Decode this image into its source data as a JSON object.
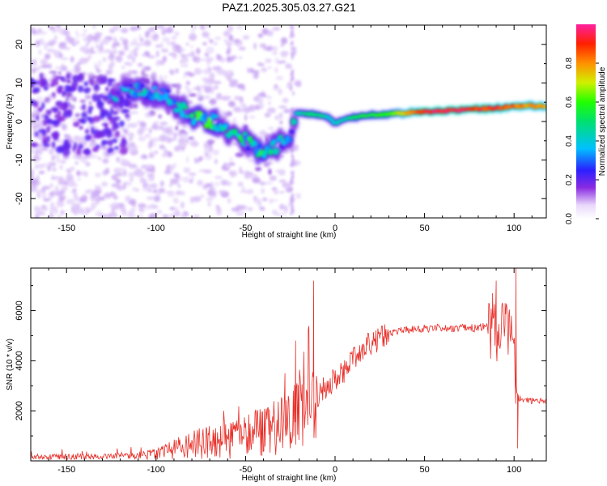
{
  "figure": {
    "title": "PAZ1.2025.305.03.27.G21"
  },
  "chart_data": [
    {
      "type": "heatmap",
      "title": "PAZ1.2025.305.03.27.G21",
      "xlabel": "Height of straight line (km)",
      "ylabel": "Frequency (Hz)",
      "xlim": [
        -170,
        118
      ],
      "ylim": [
        -25,
        25
      ],
      "x_ticks": [
        -150,
        -100,
        -50,
        0,
        50,
        100
      ],
      "x_tick_labels": [
        "-150",
        "-100",
        "-50",
        "0",
        "50",
        "100"
      ],
      "y_ticks": [
        -20,
        -10,
        0,
        10,
        20
      ],
      "y_tick_labels": [
        "-20",
        "-10",
        "0",
        "10",
        "20"
      ],
      "colorbar": {
        "label": "Normalized spectral amplitude",
        "range": [
          0,
          1
        ],
        "ticks": [
          0.0,
          0.2,
          0.4,
          0.6,
          0.8
        ],
        "tick_labels": [
          "0.0",
          "0.2",
          "0.4",
          "0.6",
          "0.8"
        ]
      },
      "ridge": {
        "x": [
          -125,
          -115,
          -105,
          -95,
          -88,
          -80,
          -70,
          -60,
          -50,
          -40,
          -32,
          -25,
          -22,
          -15,
          -8,
          -3,
          0,
          5,
          15,
          30,
          50,
          70,
          90,
          100,
          118
        ],
        "frequency": [
          7,
          8,
          8,
          7,
          4,
          1,
          0.5,
          -2,
          -5,
          -8,
          -6,
          -3,
          2,
          2,
          1.5,
          1,
          -0.5,
          0.5,
          1.5,
          2,
          2.5,
          3,
          3.5,
          4,
          4
        ],
        "amplitude": [
          0.3,
          0.35,
          0.35,
          0.3,
          0.35,
          0.45,
          0.45,
          0.4,
          0.4,
          0.45,
          0.4,
          0.3,
          0.4,
          0.5,
          0.5,
          0.4,
          0.4,
          0.45,
          0.55,
          0.6,
          0.95,
          0.95,
          0.9,
          0.85,
          0.8
        ]
      }
    },
    {
      "type": "line",
      "xlabel": "Height of straight line (km)",
      "ylabel": "SNR (10 * v/v)",
      "xlim": [
        -170,
        118
      ],
      "ylim": [
        0,
        7700
      ],
      "x_ticks": [
        -150,
        -100,
        -50,
        0,
        50,
        100
      ],
      "x_tick_labels": [
        "-150",
        "-100",
        "-50",
        "0",
        "50",
        "100"
      ],
      "y_ticks": [
        2000,
        4000,
        6000
      ],
      "y_tick_labels": [
        "2000",
        "4000",
        "6000"
      ],
      "series": [
        {
          "name": "SNR",
          "color": "#e8302a",
          "x": [
            -170,
            -150,
            -130,
            -110,
            -100,
            -90,
            -80,
            -70,
            -60,
            -50,
            -45,
            -40,
            -35,
            -30,
            -25,
            -20,
            -18,
            -16,
            -14,
            -12,
            -10,
            -5,
            0,
            5,
            10,
            15,
            20,
            25,
            30,
            35,
            40,
            50,
            60,
            70,
            80,
            85,
            88,
            90,
            95,
            98,
            100,
            101,
            102,
            103,
            105,
            110,
            118
          ],
          "y": [
            150,
            150,
            170,
            200,
            250,
            450,
            650,
            750,
            850,
            950,
            1050,
            1150,
            1250,
            1400,
            1700,
            2300,
            3000,
            3500,
            2800,
            2300,
            2500,
            3000,
            3300,
            3600,
            4000,
            4400,
            4700,
            4900,
            5100,
            5200,
            5250,
            5300,
            5300,
            5300,
            5300,
            5400,
            5700,
            5400,
            5600,
            5300,
            4800,
            3000,
            2600,
            2500,
            2450,
            2400,
            2400
          ],
          "spikes": [
            {
              "x": -28,
              "y": 3500
            },
            {
              "x": -22,
              "y": 4800
            },
            {
              "x": -15,
              "y": 4200
            },
            {
              "x": -12,
              "y": 7200
            },
            {
              "x": 88,
              "y": 6700
            },
            {
              "x": 90,
              "y": 7200
            },
            {
              "x": 95,
              "y": 6300
            },
            {
              "x": 101,
              "y": 7700
            },
            {
              "x": 102,
              "y": 500
            }
          ]
        }
      ]
    }
  ]
}
